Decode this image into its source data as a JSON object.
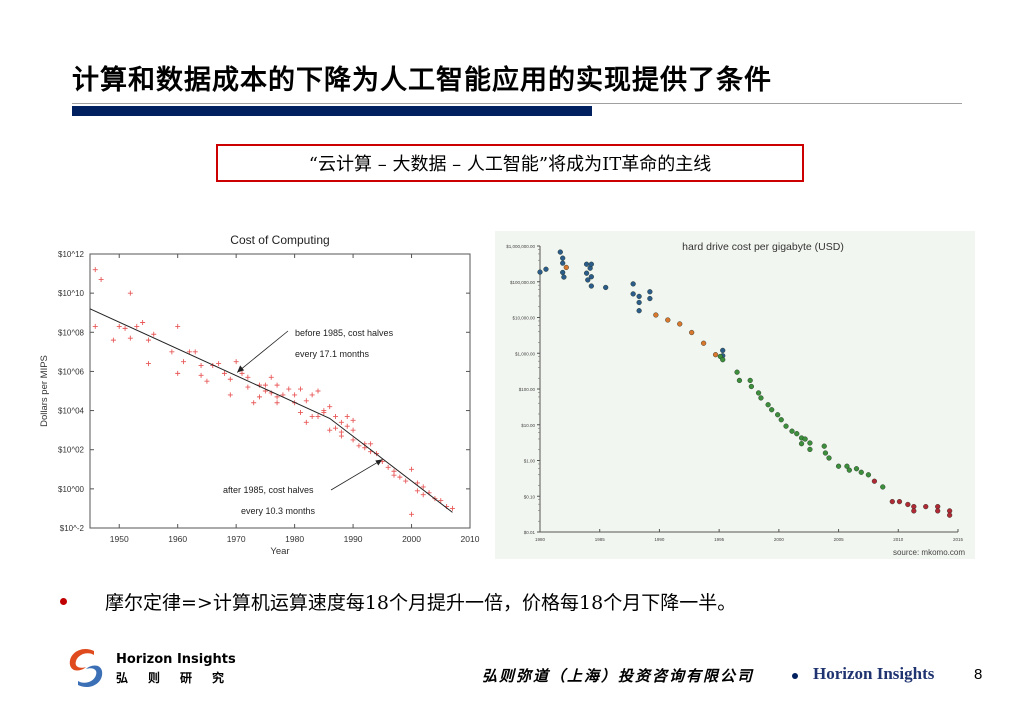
{
  "slide": {
    "title": "计算和数据成本的下降为人工智能应用的实现提供了条件",
    "callout": "“云计算 – 大数据 – 人工智能”将成为IT革命的主线",
    "bullet": "摩尔定律=>计算机运算速度每18个月提升一倍，价格每18个月下降一半。",
    "page_number": "8"
  },
  "footer": {
    "logo_en": "Horizon Insights",
    "logo_cn": "弘则研究",
    "company": "弘则弥道（上海）投资咨询有限公司",
    "brand": "Horizon Insights",
    "separator_icon": "bullet-dot"
  },
  "colors": {
    "title_bar": "#002060",
    "callout_border": "#cc0000",
    "bullet": "#c00000",
    "brand_text": "#1f3370",
    "left_points": "#e85a5a",
    "right_bg": "#f2f6f0",
    "series_blue": "#2c5d8a",
    "series_orange": "#d9772f",
    "series_green": "#3d8f3d",
    "series_red": "#b02a35"
  },
  "chart_data": [
    {
      "type": "scatter",
      "title": "Cost of Computing",
      "xlabel": "Year",
      "ylabel": "Dollars per MIPS",
      "xlim": [
        1945,
        2010
      ],
      "ylim_log10": [
        -2,
        12
      ],
      "x_ticks": [
        1950,
        1960,
        1970,
        1980,
        1990,
        2000,
        2010
      ],
      "y_ticks": [
        {
          "exp": 12,
          "label": "$10^12"
        },
        {
          "exp": 10,
          "label": "$10^10"
        },
        {
          "exp": 8,
          "label": "$10^08"
        },
        {
          "exp": 6,
          "label": "$10^06"
        },
        {
          "exp": 4,
          "label": "$10^04"
        },
        {
          "exp": 2,
          "label": "$10^02"
        },
        {
          "exp": 0,
          "label": "$10^00"
        },
        {
          "exp": -2,
          "label": "$10^-2"
        }
      ],
      "grid": false,
      "points_log10": [
        [
          1945.9,
          11.2
        ],
        [
          1946.9,
          10.7
        ],
        [
          1951.9,
          10.0
        ],
        [
          1945.9,
          8.3
        ],
        [
          1949,
          7.6
        ],
        [
          1950,
          8.3
        ],
        [
          1951,
          8.2
        ],
        [
          1951.9,
          7.7
        ],
        [
          1953,
          8.3
        ],
        [
          1954,
          8.5
        ],
        [
          1955,
          7.6
        ],
        [
          1955,
          6.4
        ],
        [
          1955.9,
          7.9
        ],
        [
          1959,
          7.0
        ],
        [
          1960,
          8.3
        ],
        [
          1960,
          5.9
        ],
        [
          1961,
          6.5
        ],
        [
          1962,
          7.0
        ],
        [
          1963,
          7.0
        ],
        [
          1964,
          6.3
        ],
        [
          1964,
          5.8
        ],
        [
          1965,
          5.5
        ],
        [
          1966,
          6.3
        ],
        [
          1967,
          6.4
        ],
        [
          1968,
          5.9
        ],
        [
          1969,
          5.6
        ],
        [
          1969,
          4.8
        ],
        [
          1970,
          6.5
        ],
        [
          1971,
          5.9
        ],
        [
          1972,
          5.7
        ],
        [
          1972,
          5.2
        ],
        [
          1973,
          4.4
        ],
        [
          1974,
          4.7
        ],
        [
          1974,
          5.3
        ],
        [
          1975,
          5.3
        ],
        [
          1975,
          5.0
        ],
        [
          1976,
          5.7
        ],
        [
          1976,
          4.9
        ],
        [
          1977,
          5.3
        ],
        [
          1977,
          4.7
        ],
        [
          1977,
          4.4
        ],
        [
          1978,
          4.8
        ],
        [
          1979,
          5.1
        ],
        [
          1980,
          4.8
        ],
        [
          1980,
          4.4
        ],
        [
          1981,
          5.1
        ],
        [
          1981,
          3.9
        ],
        [
          1982,
          4.5
        ],
        [
          1982,
          3.4
        ],
        [
          1983,
          4.8
        ],
        [
          1983,
          3.7
        ],
        [
          1984,
          5.0
        ],
        [
          1984,
          3.7
        ],
        [
          1985,
          4.0
        ],
        [
          1985,
          3.9
        ],
        [
          1986,
          4.2
        ],
        [
          1986,
          3.0
        ],
        [
          1987,
          3.7
        ],
        [
          1987,
          3.1
        ],
        [
          1988,
          3.4
        ],
        [
          1988,
          2.9
        ],
        [
          1988,
          2.7
        ],
        [
          1989,
          3.7
        ],
        [
          1989,
          3.2
        ],
        [
          1990,
          3.5
        ],
        [
          1990,
          3.0
        ],
        [
          1990,
          2.5
        ],
        [
          1991,
          2.2
        ],
        [
          1992,
          2.3
        ],
        [
          1992,
          2.1
        ],
        [
          1993,
          2.3
        ],
        [
          1993,
          1.9
        ],
        [
          1994,
          1.8
        ],
        [
          1995,
          1.4
        ],
        [
          1996,
          1.1
        ],
        [
          1997,
          0.9
        ],
        [
          1997,
          0.7
        ],
        [
          1998,
          0.6
        ],
        [
          1999,
          0.4
        ],
        [
          2000,
          1.0
        ],
        [
          2000,
          -1.3
        ],
        [
          2001,
          0.3
        ],
        [
          2001,
          -0.1
        ],
        [
          2002,
          0.1
        ],
        [
          2002,
          -0.3
        ],
        [
          2003,
          -0.2
        ],
        [
          2004,
          -0.5
        ],
        [
          2005,
          -0.6
        ],
        [
          2006,
          -0.9
        ],
        [
          2007,
          -1.0
        ]
      ],
      "trend_line_log10": [
        [
          1945,
          9.2
        ],
        [
          1986,
          3.6
        ],
        [
          2007,
          -1.2
        ]
      ],
      "annotations": [
        {
          "lines": [
            "before 1985, cost halves",
            "every 17.1 months"
          ],
          "arrow_to": [
            1970,
            5.9
          ]
        },
        {
          "lines": [
            "after 1985, cost halves",
            "every 10.3 months"
          ],
          "arrow_to": [
            1995,
            1.5
          ]
        }
      ]
    },
    {
      "type": "scatter",
      "title": "hard drive cost per gigabyte (USD)",
      "source": "source: mkomo.com",
      "xlim": [
        1980,
        2015
      ],
      "ylim_log10": [
        -2,
        6
      ],
      "x_ticks": [
        1980,
        1985,
        1990,
        1995,
        2000,
        2005,
        2010,
        2015
      ],
      "y_ticks": [
        {
          "exp": 6,
          "label": "$1,000,000.00"
        },
        {
          "exp": 5,
          "label": "$100,000.00"
        },
        {
          "exp": 4,
          "label": "$10,000.00"
        },
        {
          "exp": 3,
          "label": "$1,000.00"
        },
        {
          "exp": 2,
          "label": "$100.00"
        },
        {
          "exp": 1,
          "label": "$10.00"
        },
        {
          "exp": 0,
          "label": "$1.00"
        },
        {
          "exp": -1,
          "label": "$0.10"
        },
        {
          "exp": -2,
          "label": "$0.01"
        }
      ],
      "series": [
        {
          "name": "blue",
          "points_log10": [
            [
              1980,
              5.27
            ],
            [
              1980.5,
              5.35
            ],
            [
              1981.7,
              5.83
            ],
            [
              1981.9,
              5.66
            ],
            [
              1981.9,
              5.52
            ],
            [
              1981.9,
              5.26
            ],
            [
              1982,
              5.13
            ],
            [
              1983.9,
              5.49
            ],
            [
              1983.9,
              5.24
            ],
            [
              1984,
              5.05
            ],
            [
              1984.2,
              5.38
            ],
            [
              1984.3,
              5.49
            ],
            [
              1984.3,
              5.14
            ],
            [
              1984.3,
              4.88
            ],
            [
              1985.5,
              4.84
            ],
            [
              1987.8,
              4.94
            ],
            [
              1987.8,
              4.66
            ],
            [
              1988.3,
              4.59
            ],
            [
              1988.3,
              4.42
            ],
            [
              1988.3,
              4.19
            ],
            [
              1989.2,
              4.72
            ],
            [
              1989.2,
              4.53
            ],
            [
              1995.3,
              3.08
            ],
            [
              1995.3,
              2.93
            ]
          ]
        },
        {
          "name": "orange",
          "points_log10": [
            [
              1982.2,
              5.4
            ],
            [
              1989.7,
              4.07
            ],
            [
              1990.7,
              3.93
            ],
            [
              1991.7,
              3.82
            ],
            [
              1992.7,
              3.58
            ],
            [
              1993.7,
              3.28
            ],
            [
              1994.7,
              2.96
            ]
          ]
        },
        {
          "name": "green",
          "points_log10": [
            [
              1995.1,
              2.91
            ],
            [
              1995.3,
              2.82
            ],
            [
              1996.5,
              2.47
            ],
            [
              1996.7,
              2.24
            ],
            [
              1997.6,
              2.24
            ],
            [
              1997.7,
              2.07
            ],
            [
              1998.3,
              1.89
            ],
            [
              1998.5,
              1.75
            ],
            [
              1999.1,
              1.56
            ],
            [
              1999.4,
              1.42
            ],
            [
              1999.9,
              1.28
            ],
            [
              2000.2,
              1.14
            ],
            [
              2000.6,
              0.96
            ],
            [
              2001.1,
              0.82
            ],
            [
              2001.5,
              0.75
            ],
            [
              2001.9,
              0.63
            ],
            [
              2001.9,
              0.47
            ],
            [
              2002.2,
              0.6
            ],
            [
              2002.6,
              0.49
            ],
            [
              2002.6,
              0.31
            ],
            [
              2003.8,
              0.4
            ],
            [
              2003.9,
              0.21
            ],
            [
              2004.2,
              0.07
            ],
            [
              2005,
              -0.16
            ],
            [
              2005.7,
              -0.16
            ],
            [
              2005.9,
              -0.27
            ],
            [
              2006.5,
              -0.23
            ],
            [
              2006.9,
              -0.33
            ],
            [
              2007.5,
              -0.4
            ],
            [
              2008.7,
              -0.74
            ]
          ]
        },
        {
          "name": "red",
          "points_log10": [
            [
              2008,
              -0.58
            ],
            [
              2009.5,
              -1.15
            ],
            [
              2010.1,
              -1.15
            ],
            [
              2010.8,
              -1.23
            ],
            [
              2011.3,
              -1.29
            ],
            [
              2011.3,
              -1.41
            ],
            [
              2012.3,
              -1.29
            ],
            [
              2013.3,
              -1.29
            ],
            [
              2013.3,
              -1.41
            ],
            [
              2014.3,
              -1.41
            ],
            [
              2014.3,
              -1.53
            ]
          ]
        }
      ]
    }
  ]
}
